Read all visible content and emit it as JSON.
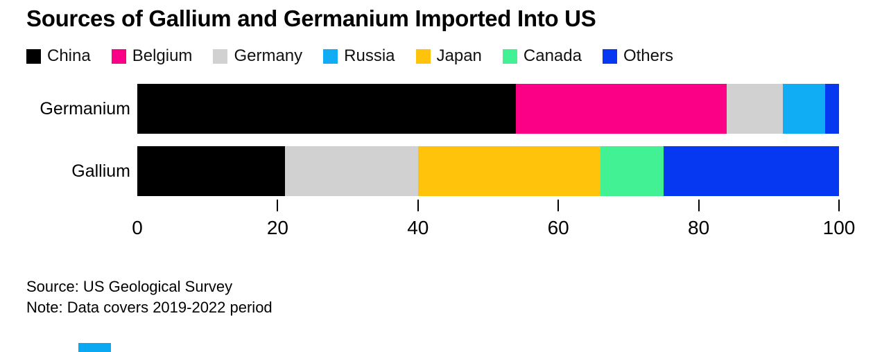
{
  "title": "Sources of Gallium and Germanium Imported Into US",
  "legend": {
    "items": [
      {
        "label": "China",
        "color": "#000000"
      },
      {
        "label": "Belgium",
        "color": "#fb0086"
      },
      {
        "label": "Germany",
        "color": "#d1d1d1"
      },
      {
        "label": "Russia",
        "color": "#10adf4"
      },
      {
        "label": "Japan",
        "color": "#ffc30b"
      },
      {
        "label": "Canada",
        "color": "#43f195"
      },
      {
        "label": "Others",
        "color": "#0538f0"
      }
    ]
  },
  "chart_data": {
    "type": "bar",
    "orientation": "horizontal",
    "stacked": true,
    "title": "Sources of Gallium and Germanium Imported Into US",
    "categories": [
      "Germanium",
      "Gallium"
    ],
    "series": [
      {
        "name": "China",
        "color": "#000000",
        "values": [
          54,
          21
        ]
      },
      {
        "name": "Belgium",
        "color": "#fb0086",
        "values": [
          30,
          0
        ]
      },
      {
        "name": "Germany",
        "color": "#d1d1d1",
        "values": [
          8,
          19
        ]
      },
      {
        "name": "Russia",
        "color": "#10adf4",
        "values": [
          6,
          0
        ]
      },
      {
        "name": "Japan",
        "color": "#ffc30b",
        "values": [
          0,
          26
        ]
      },
      {
        "name": "Canada",
        "color": "#43f195",
        "values": [
          0,
          9
        ]
      },
      {
        "name": "Others",
        "color": "#0538f0",
        "values": [
          2,
          25
        ]
      }
    ],
    "unit": "percent",
    "xlim": [
      0,
      100
    ],
    "xticks": [
      0,
      20,
      40,
      60,
      80,
      100
    ],
    "grid": false,
    "legend_position": "top"
  },
  "footer": {
    "source": "Source: US Geological Survey",
    "note": "Note: Data covers 2019-2022 period"
  },
  "accent": {
    "bottom_bar_color": "#0aa7f2"
  }
}
